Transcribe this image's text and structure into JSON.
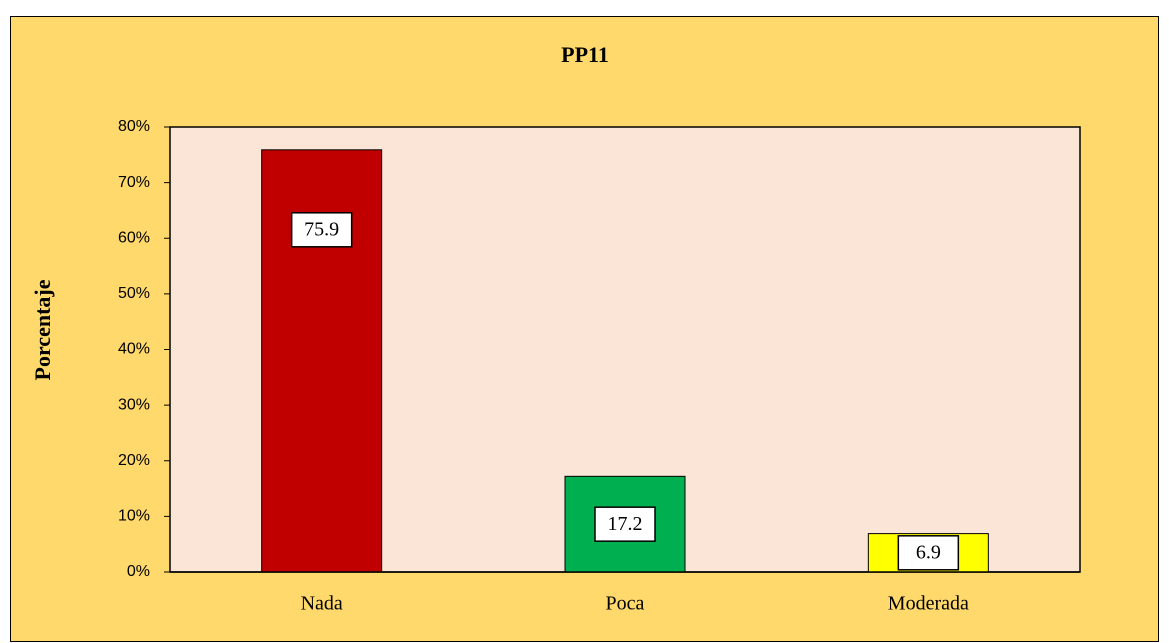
{
  "chart_data": {
    "type": "bar",
    "title": "PP11",
    "y_label": "Porcentaje",
    "categories": [
      "Nada",
      "Poca",
      "Moderada"
    ],
    "values": [
      75.9,
      17.2,
      6.9
    ],
    "colors": [
      "#c00000",
      "#00b050",
      "#ffff00"
    ],
    "ylim": [
      0,
      80
    ],
    "yticks": [
      {
        "value": 0,
        "label": "0%"
      },
      {
        "value": 10,
        "label": "10%"
      },
      {
        "value": 20,
        "label": "20%"
      },
      {
        "value": 30,
        "label": "30%"
      },
      {
        "value": 40,
        "label": "40%"
      },
      {
        "value": 50,
        "label": "50%"
      },
      {
        "value": 60,
        "label": "60%"
      },
      {
        "value": 70,
        "label": "70%"
      },
      {
        "value": 80,
        "label": "80%"
      }
    ],
    "grid": false
  }
}
